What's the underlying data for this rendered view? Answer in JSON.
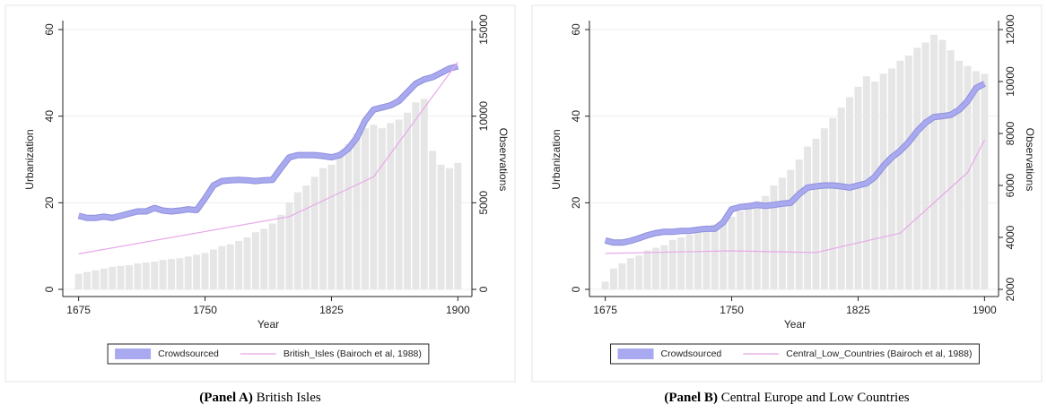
{
  "chart_data": [
    {
      "type": "combo",
      "caption_label": "(Panel A)",
      "caption": "British Isles",
      "xlabel": "Year",
      "ylabel": "Urbanization",
      "y2label": "Observations",
      "xlim": [
        1672,
        1903
      ],
      "xticks": [
        1675,
        1750,
        1825,
        1900
      ],
      "ylim": [
        0,
        60
      ],
      "yticks": [
        0,
        20,
        40,
        60
      ],
      "y2lim": [
        0,
        15000
      ],
      "y2ticks": [
        0,
        5000,
        10000,
        15000
      ],
      "grid": true,
      "x": [
        1675,
        1680,
        1685,
        1690,
        1695,
        1700,
        1705,
        1710,
        1715,
        1720,
        1725,
        1730,
        1735,
        1740,
        1745,
        1750,
        1755,
        1760,
        1765,
        1770,
        1775,
        1780,
        1785,
        1790,
        1795,
        1800,
        1805,
        1810,
        1815,
        1820,
        1825,
        1830,
        1835,
        1840,
        1845,
        1850,
        1855,
        1860,
        1865,
        1870,
        1875,
        1880,
        1885,
        1890,
        1895,
        1900
      ],
      "bars": {
        "axis": "y2",
        "color": "#e6e6e6",
        "values": [
          900,
          1000,
          1100,
          1200,
          1300,
          1350,
          1400,
          1500,
          1550,
          1600,
          1700,
          1750,
          1800,
          1900,
          2000,
          2100,
          2300,
          2500,
          2600,
          2800,
          3000,
          3300,
          3500,
          3800,
          4300,
          5000,
          5600,
          6000,
          6500,
          7000,
          7200,
          7800,
          8400,
          9000,
          9300,
          9500,
          9300,
          9600,
          9800,
          10200,
          10800,
          11000,
          8000,
          7200,
          7000,
          7300
        ]
      },
      "series": [
        {
          "name": "Crowdsourced",
          "color": "#a9a9f0",
          "style": "band",
          "x": [
            1675,
            1680,
            1685,
            1690,
            1695,
            1700,
            1705,
            1710,
            1715,
            1720,
            1725,
            1730,
            1735,
            1740,
            1745,
            1750,
            1755,
            1760,
            1765,
            1770,
            1775,
            1780,
            1785,
            1790,
            1795,
            1800,
            1805,
            1810,
            1815,
            1820,
            1825,
            1830,
            1835,
            1840,
            1845,
            1850,
            1855,
            1860,
            1865,
            1870,
            1875,
            1880,
            1885,
            1890,
            1895,
            1900
          ],
          "values": [
            17,
            16.5,
            16.5,
            16.8,
            16.5,
            17,
            17.5,
            18,
            18,
            18.8,
            18.2,
            18,
            18.2,
            18.5,
            18.3,
            21,
            24,
            25,
            25.2,
            25.3,
            25.2,
            25,
            25.2,
            25.3,
            28,
            30.5,
            31,
            31,
            31,
            30.8,
            30.5,
            31,
            32.5,
            35,
            39,
            41.5,
            42,
            42.5,
            43.5,
            45.5,
            47.5,
            48.5,
            49,
            50,
            51,
            51.5
          ]
        },
        {
          "name": "British_Isles (Bairoch et al, 1988)",
          "color": "#e8a8e8",
          "style": "line",
          "x": [
            1675,
            1800,
            1850,
            1900
          ],
          "values": [
            8.2,
            16.8,
            26,
            52.5
          ]
        }
      ]
    },
    {
      "type": "combo",
      "caption_label": "(Panel B)",
      "caption": "Central Europe and Low Countries",
      "xlabel": "Year",
      "ylabel": "Urbanization",
      "y2label": "Observations",
      "xlim": [
        1672,
        1903
      ],
      "xticks": [
        1675,
        1750,
        1825,
        1900
      ],
      "ylim": [
        0,
        60
      ],
      "yticks": [
        0,
        20,
        40,
        60
      ],
      "y2lim": [
        2000,
        12000
      ],
      "y2ticks": [
        2000,
        4000,
        6000,
        8000,
        10000,
        12000
      ],
      "grid": true,
      "x": [
        1675,
        1680,
        1685,
        1690,
        1695,
        1700,
        1705,
        1710,
        1715,
        1720,
        1725,
        1730,
        1735,
        1740,
        1745,
        1750,
        1755,
        1760,
        1765,
        1770,
        1775,
        1780,
        1785,
        1790,
        1795,
        1800,
        1805,
        1810,
        1815,
        1820,
        1825,
        1830,
        1835,
        1840,
        1845,
        1850,
        1855,
        1860,
        1865,
        1870,
        1875,
        1880,
        1885,
        1890,
        1895,
        1900
      ],
      "bars": {
        "axis": "y2",
        "color": "#e6e6e6",
        "values": [
          2300,
          2800,
          3000,
          3200,
          3300,
          3500,
          3600,
          3700,
          3900,
          4000,
          4100,
          4200,
          4300,
          4500,
          4600,
          4800,
          5000,
          5300,
          5400,
          5600,
          6000,
          6300,
          6600,
          7000,
          7500,
          7800,
          8200,
          8600,
          9000,
          9400,
          9800,
          10200,
          10000,
          10300,
          10500,
          10800,
          11000,
          11300,
          11500,
          11800,
          11600,
          11200,
          10800,
          10600,
          10400,
          10300
        ]
      },
      "series": [
        {
          "name": "Crowdsourced",
          "color": "#a9a9f0",
          "style": "band",
          "x": [
            1675,
            1680,
            1685,
            1690,
            1695,
            1700,
            1705,
            1710,
            1715,
            1720,
            1725,
            1730,
            1735,
            1740,
            1745,
            1750,
            1755,
            1760,
            1765,
            1770,
            1775,
            1780,
            1785,
            1790,
            1795,
            1800,
            1805,
            1810,
            1815,
            1820,
            1825,
            1830,
            1835,
            1840,
            1845,
            1850,
            1855,
            1860,
            1865,
            1870,
            1875,
            1880,
            1885,
            1890,
            1895,
            1900
          ],
          "values": [
            11.3,
            10.8,
            10.8,
            11.2,
            11.8,
            12.5,
            13,
            13.3,
            13.3,
            13.5,
            13.5,
            13.8,
            14,
            14,
            15.5,
            18.5,
            19,
            19.2,
            19.5,
            19.3,
            19.5,
            19.8,
            20,
            22,
            23.5,
            23.8,
            24,
            24,
            23.8,
            23.5,
            24,
            24.5,
            26,
            28.5,
            30.5,
            32,
            34,
            36.5,
            38.5,
            39.8,
            40,
            40.3,
            41.5,
            43.5,
            46.5,
            47.5
          ]
        },
        {
          "name": "Central_Low_Countries (Bairoch et al, 1988)",
          "color": "#e8a8e8",
          "style": "line",
          "x": [
            1675,
            1750,
            1800,
            1850,
            1890,
            1900
          ],
          "values": [
            8.3,
            8.9,
            8.5,
            13,
            27,
            34.5
          ]
        }
      ]
    }
  ]
}
